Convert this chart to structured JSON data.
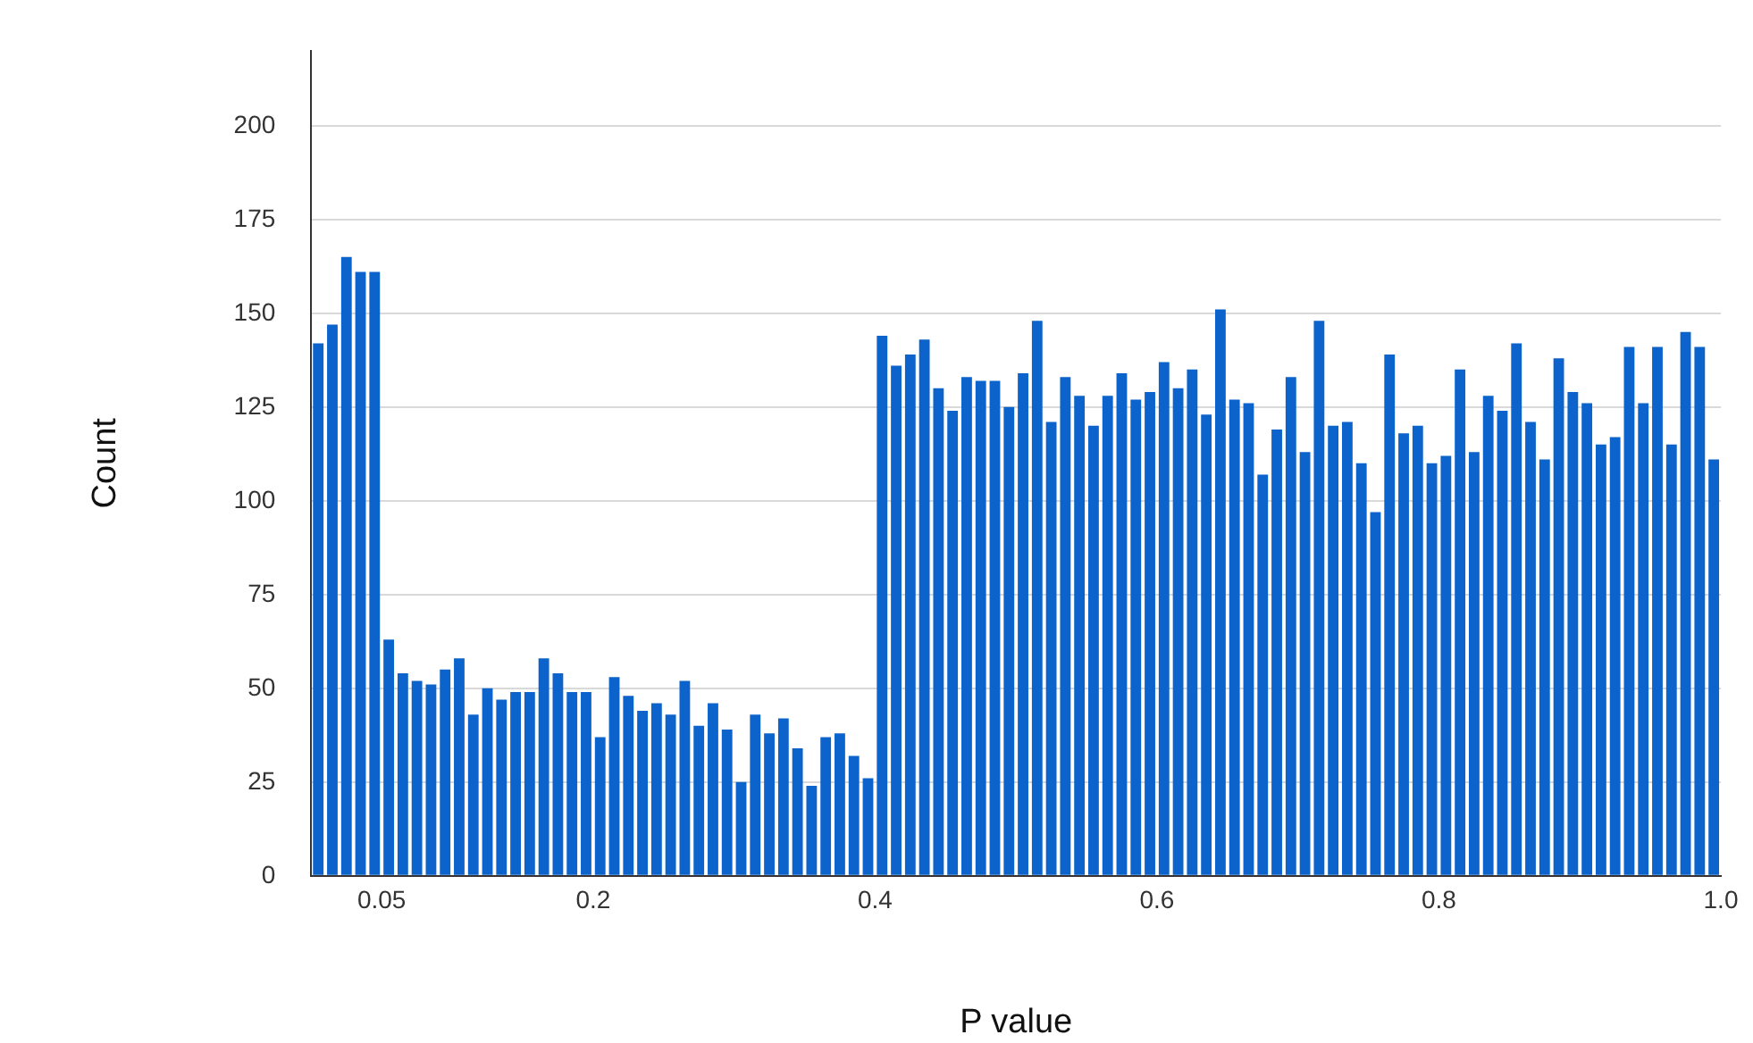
{
  "chart_data": {
    "type": "histogram",
    "xlabel": "P value",
    "ylabel": "Count",
    "bins": [
      0,
      0.01,
      0.02,
      0.03,
      0.04,
      0.05,
      0.06,
      0.07,
      0.08,
      0.09,
      0.1,
      0.11,
      0.12,
      0.13,
      0.14,
      0.15,
      0.16,
      0.17,
      0.18,
      0.19,
      0.2,
      0.21,
      0.22,
      0.23,
      0.24,
      0.25,
      0.26,
      0.27,
      0.28,
      0.29,
      0.3,
      0.31,
      0.32,
      0.33,
      0.34,
      0.35,
      0.36,
      0.37,
      0.38,
      0.39,
      0.4,
      0.41,
      0.42,
      0.43,
      0.44,
      0.45,
      0.46,
      0.47,
      0.48,
      0.49,
      0.5,
      0.51,
      0.52,
      0.53,
      0.54,
      0.55,
      0.56,
      0.57,
      0.58,
      0.59,
      0.6,
      0.61,
      0.62,
      0.63,
      0.64,
      0.65,
      0.66,
      0.67,
      0.68,
      0.69,
      0.7,
      0.71,
      0.72,
      0.73,
      0.74,
      0.75,
      0.76,
      0.77,
      0.78,
      0.79,
      0.8,
      0.81,
      0.82,
      0.83,
      0.84,
      0.85,
      0.86,
      0.87,
      0.88,
      0.89,
      0.9,
      0.91,
      0.92,
      0.93,
      0.94,
      0.95,
      0.96,
      0.97,
      0.98,
      0.99,
      1
    ],
    "values": [
      142,
      147,
      165,
      161,
      161,
      63,
      54,
      52,
      51,
      55,
      58,
      43,
      50,
      47,
      49,
      49,
      58,
      54,
      49,
      49,
      37,
      53,
      48,
      44,
      46,
      43,
      52,
      40,
      46,
      39,
      25,
      43,
      38,
      42,
      34,
      24,
      37,
      38,
      32,
      26,
      144,
      136,
      139,
      143,
      130,
      124,
      133,
      132,
      132,
      125,
      134,
      148,
      121,
      133,
      128,
      120,
      128,
      134,
      127,
      129,
      137,
      130,
      135,
      123,
      151,
      127,
      126,
      107,
      119,
      133,
      113,
      148,
      120,
      121,
      110,
      97,
      139,
      118,
      120,
      110,
      112,
      135,
      113,
      128,
      124,
      142,
      121,
      111,
      138,
      129,
      126,
      115,
      117,
      141,
      126,
      141,
      115,
      145,
      141,
      111
    ],
    "color": "#0b63cb",
    "xlim": [
      0,
      1
    ],
    "xticks": [
      0.05,
      0.2,
      0.4,
      0.6,
      0.8,
      {
        "value": 1,
        "label": "1.0"
      }
    ],
    "ylim": [
      0,
      220
    ],
    "yticks": [
      0,
      25,
      50,
      75,
      100,
      125,
      150,
      175,
      200
    ],
    "grid": "y",
    "legend": false
  }
}
